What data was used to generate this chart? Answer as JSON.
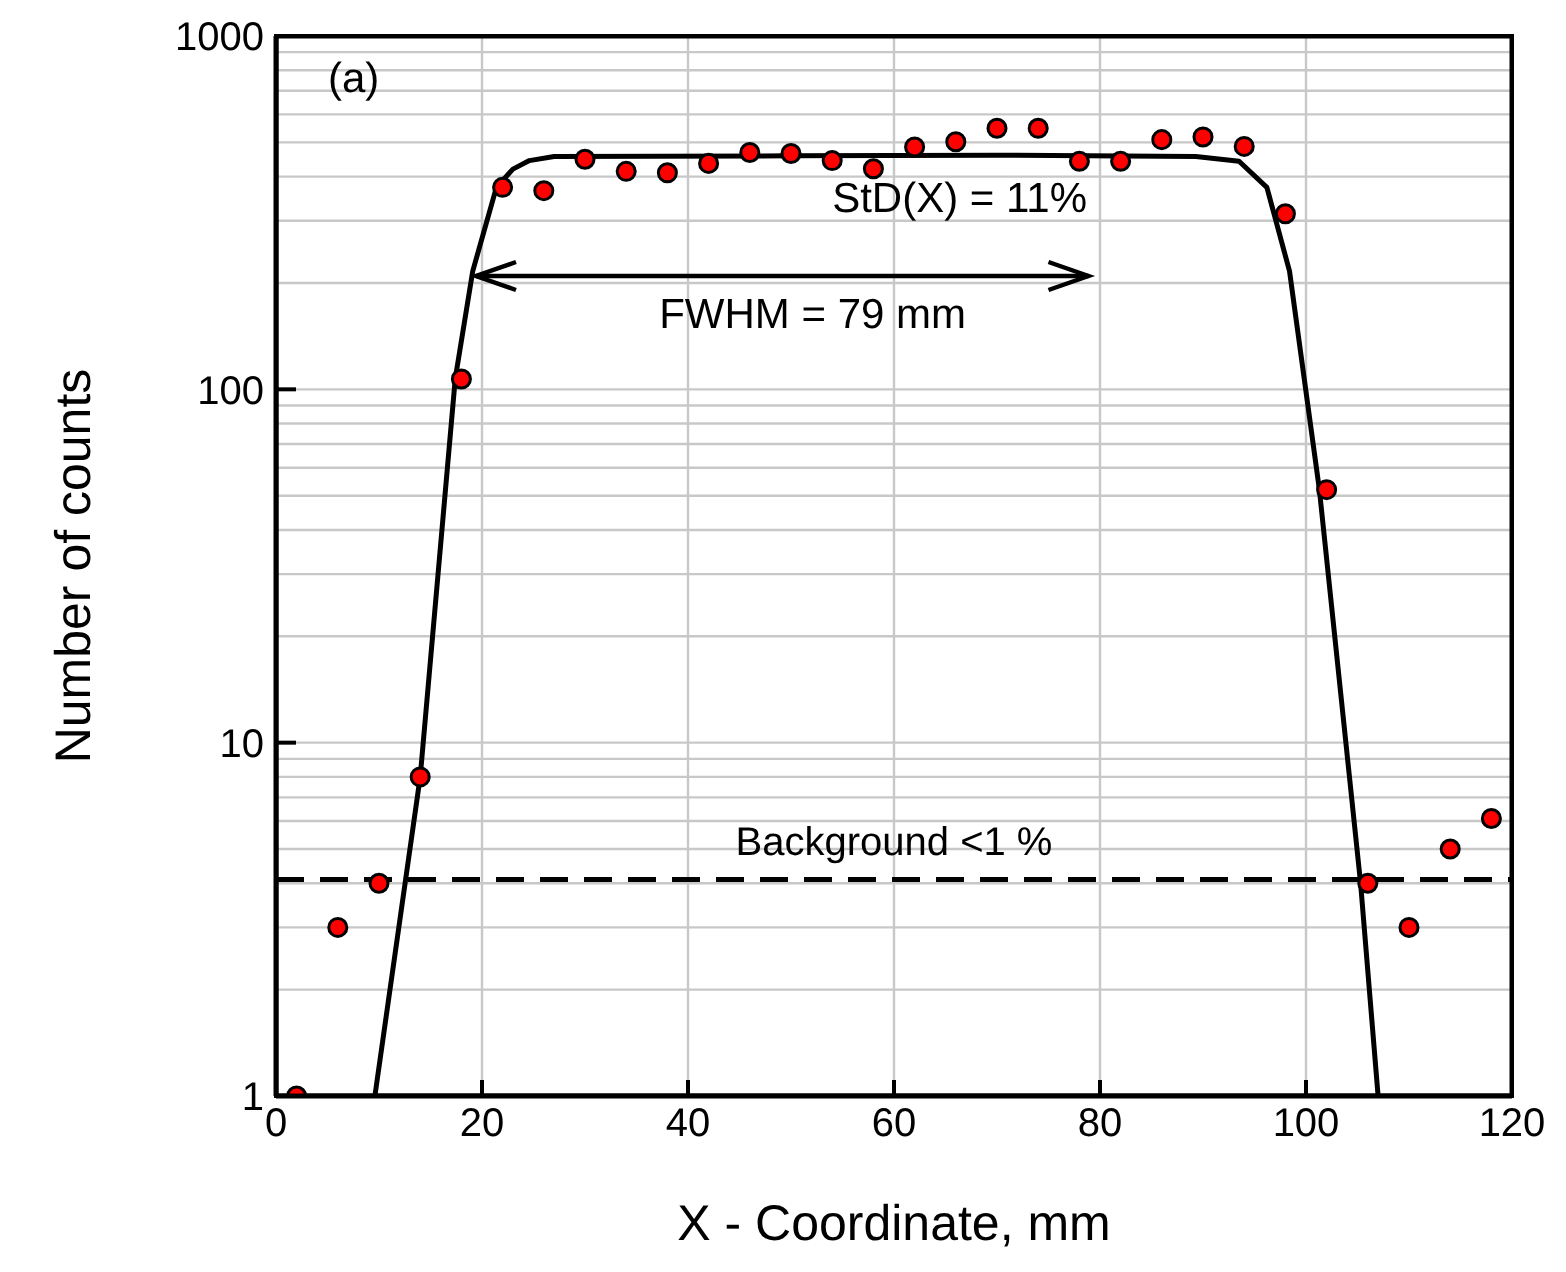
{
  "chart_data": {
    "type": "scatter",
    "xlabel": "X - Coordinate, mm",
    "ylabel": "Number of counts",
    "xlim": [
      0,
      120
    ],
    "xticks": [
      0,
      20,
      40,
      60,
      80,
      100,
      120
    ],
    "ylim": [
      1,
      1000
    ],
    "yticks": [
      1,
      10,
      100,
      1000
    ],
    "log": "y",
    "grid": true,
    "series": [
      {
        "color": "#ff0000",
        "marker": "circle",
        "x": [
          2,
          6,
          10,
          14,
          18,
          22,
          26,
          30,
          34,
          38,
          42,
          46,
          50,
          54,
          58,
          62,
          66,
          70,
          74,
          78,
          82,
          86,
          90,
          94,
          98,
          102,
          106,
          110,
          114,
          118
        ],
        "values": [
          1,
          3,
          4,
          8,
          107,
          373,
          365,
          448,
          414,
          410,
          436,
          468,
          465,
          444,
          421,
          485,
          502,
          548,
          548,
          442,
          442,
          509,
          518,
          487,
          314,
          52,
          4,
          3,
          5,
          6.1
        ]
      },
      {
        "type": "line",
        "color": "#000000",
        "marker": "none",
        "line_style": "solid",
        "x": [
          9.6,
          14,
          17.4,
          19.1,
          21.4,
          23,
          24.6,
          27,
          50,
          70,
          89.3,
          93.5,
          96.2,
          98.4,
          101.3,
          105.3,
          107
        ],
        "values": [
          1,
          8,
          107,
          216,
          373,
          420,
          444,
          456,
          458,
          460,
          456,
          442,
          373,
          216,
          52,
          4,
          1
        ]
      }
    ],
    "ref_lines": [
      {
        "axis": "y",
        "value": 4.1,
        "label": "Background <1 %",
        "color": "#000000",
        "line_style": "dashed"
      }
    ],
    "annotations": [
      "(a)",
      "StD(X) = 11%",
      "FWHM = 79 mm"
    ]
  }
}
